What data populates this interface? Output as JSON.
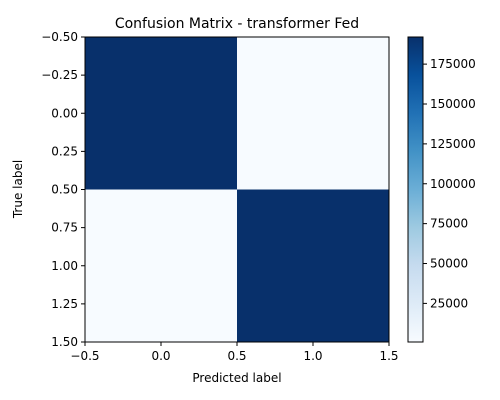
{
  "chart_data": {
    "type": "heatmap",
    "title": "Confusion Matrix - transformer Fed",
    "xlabel": "Predicted label",
    "ylabel": "True label",
    "matrix": [
      [
        192000,
        800
      ],
      [
        800,
        192000
      ]
    ],
    "extent": {
      "x": [
        -0.5,
        1.5
      ],
      "y": [
        -0.5,
        1.5
      ]
    },
    "x_ticks": [
      "−0.5",
      "0.0",
      "0.5",
      "1.0",
      "1.5"
    ],
    "y_ticks": [
      "−0.50",
      "−0.25",
      "0.00",
      "0.25",
      "0.50",
      "0.75",
      "1.00",
      "1.25",
      "1.50"
    ],
    "colorbar": {
      "range": [
        800,
        192000
      ],
      "ticks": [
        "25000",
        "50000",
        "75000",
        "100000",
        "125000",
        "150000",
        "175000"
      ],
      "colormap": "Blues",
      "low_color": "#f7fbff",
      "high_color": "#08306b"
    },
    "grid": false,
    "legend": "none"
  }
}
